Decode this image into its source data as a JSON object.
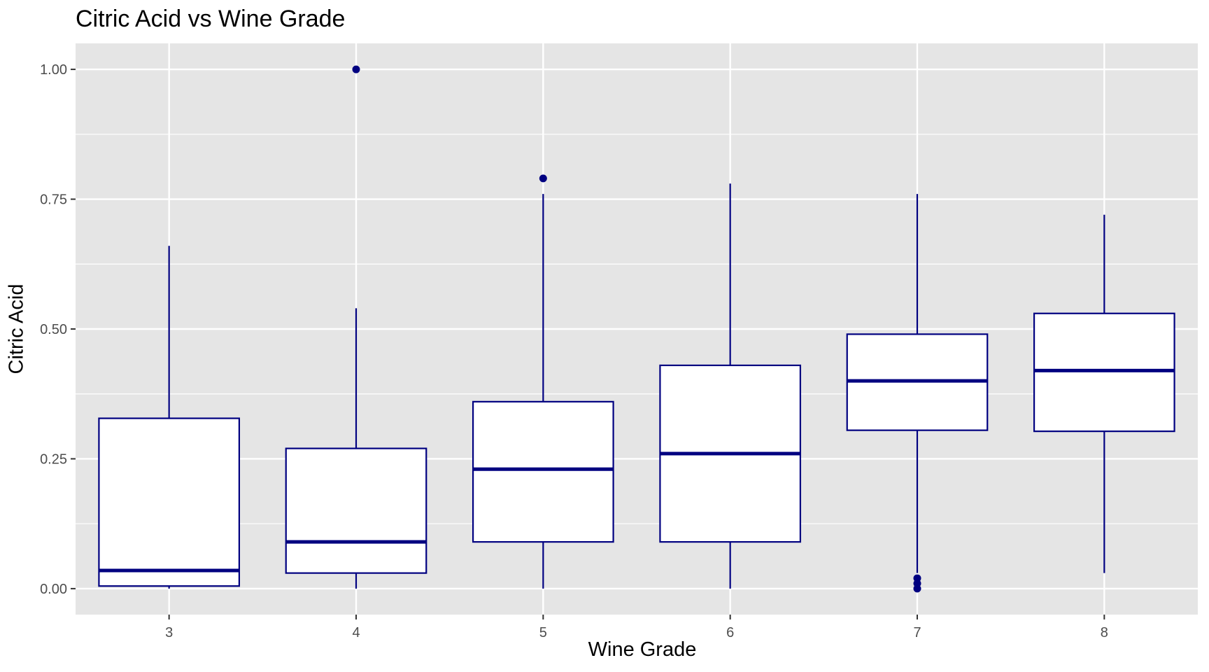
{
  "chart_data": {
    "type": "box",
    "title": "Citric Acid vs Wine Grade",
    "xlabel": "Wine Grade",
    "ylabel": "Citric Acid",
    "categories": [
      "3",
      "4",
      "5",
      "6",
      "7",
      "8"
    ],
    "ylim": [
      -0.05,
      1.05
    ],
    "yticks": [
      0.0,
      0.25,
      0.5,
      0.75,
      1.0
    ],
    "ytick_labels": [
      "0.00",
      "0.25",
      "0.50",
      "0.75",
      "1.00"
    ],
    "grid": true,
    "colors": {
      "panel": "#e5e5e5",
      "grid": "#ffffff",
      "box_stroke": "#000080",
      "box_fill": "#ffffff"
    },
    "boxes": [
      {
        "category": "3",
        "whisker_low": 0.0,
        "q1": 0.005,
        "median": 0.035,
        "q3": 0.328,
        "whisker_high": 0.66,
        "outliers": []
      },
      {
        "category": "4",
        "whisker_low": 0.0,
        "q1": 0.03,
        "median": 0.09,
        "q3": 0.27,
        "whisker_high": 0.54,
        "outliers": [
          1.0
        ]
      },
      {
        "category": "5",
        "whisker_low": 0.0,
        "q1": 0.09,
        "median": 0.23,
        "q3": 0.36,
        "whisker_high": 0.76,
        "outliers": [
          0.79
        ]
      },
      {
        "category": "6",
        "whisker_low": 0.0,
        "q1": 0.09,
        "median": 0.26,
        "q3": 0.43,
        "whisker_high": 0.78,
        "outliers": []
      },
      {
        "category": "7",
        "whisker_low": 0.03,
        "q1": 0.305,
        "median": 0.4,
        "q3": 0.49,
        "whisker_high": 0.76,
        "outliers": [
          0.0,
          0.01,
          0.02
        ]
      },
      {
        "category": "8",
        "whisker_low": 0.03,
        "q1": 0.303,
        "median": 0.42,
        "q3": 0.53,
        "whisker_high": 0.72,
        "outliers": []
      }
    ]
  }
}
